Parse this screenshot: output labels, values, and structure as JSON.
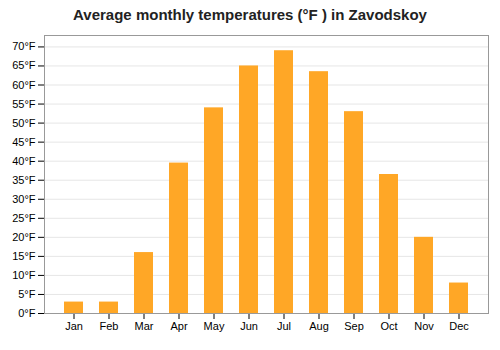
{
  "chart_data": {
    "type": "bar",
    "title": "Average monthly temperatures (°F ) in Zavodskoy",
    "categories": [
      "Jan",
      "Feb",
      "Mar",
      "Apr",
      "May",
      "Jun",
      "Jul",
      "Aug",
      "Sep",
      "Oct",
      "Nov",
      "Dec"
    ],
    "values": [
      3,
      3,
      16,
      39.5,
      54,
      65,
      69,
      63.5,
      53,
      36.5,
      20,
      8
    ],
    "color": "#FFA726",
    "ylim": [
      0,
      73
    ],
    "yticks": [
      {
        "value": 0,
        "label": "0°F"
      },
      {
        "value": 5,
        "label": "5°F"
      },
      {
        "value": 10,
        "label": "10°F"
      },
      {
        "value": 15,
        "label": "15°F"
      },
      {
        "value": 20,
        "label": "20°F"
      },
      {
        "value": 25,
        "label": "25°F"
      },
      {
        "value": 30,
        "label": "30°F"
      },
      {
        "value": 35,
        "label": "35°F"
      },
      {
        "value": 40,
        "label": "40°F"
      },
      {
        "value": 45,
        "label": "45°F"
      },
      {
        "value": 50,
        "label": "50°F"
      },
      {
        "value": 55,
        "label": "55°F"
      },
      {
        "value": 60,
        "label": "60°F"
      },
      {
        "value": 65,
        "label": "65°F"
      },
      {
        "value": 70,
        "label": "70°F"
      }
    ],
    "grid": true
  }
}
